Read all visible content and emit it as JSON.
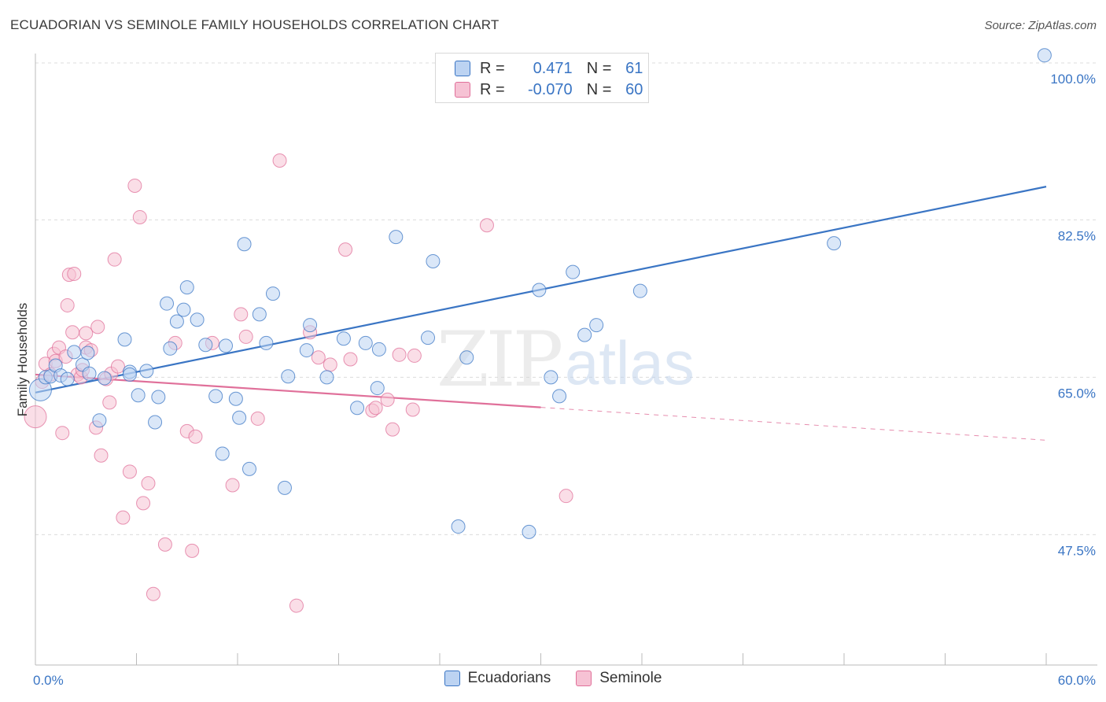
{
  "header": {
    "title": "ECUADORIAN VS SEMINOLE FAMILY HOUSEHOLDS CORRELATION CHART",
    "source": "Source: ZipAtlas.com"
  },
  "colors": {
    "blue": "#3a75c4",
    "blue_fill": "#bcd3f2",
    "pink": "#e0709a",
    "pink_fill": "#f6c2d4",
    "grid": "#dcdcdc",
    "axis": "#bbbbbb"
  },
  "legend": {
    "rows": [
      {
        "r_label": "R =",
        "r_value": "0.471",
        "n_label": "N =",
        "n_value": "61"
      },
      {
        "r_label": "R =",
        "r_value": "-0.070",
        "n_label": "N =",
        "n_value": "60"
      }
    ]
  },
  "chart_data": {
    "type": "scatter",
    "title": "ECUADORIAN VS SEMINOLE FAMILY HOUSEHOLDS CORRELATION CHART",
    "xlabel": "",
    "ylabel": "Family Households",
    "xlim": [
      0,
      60
    ],
    "ylim": [
      33,
      101
    ],
    "x_tick_labels": [
      "0.0%",
      "60.0%"
    ],
    "y_ticks": [
      47.5,
      65.0,
      82.5,
      100.0
    ],
    "y_tick_labels": [
      "47.5%",
      "65.0%",
      "82.5%",
      "100.0%"
    ],
    "grid": true,
    "watermark": {
      "zip": "ZIP",
      "atlas": "atlas"
    },
    "series": [
      {
        "name": "Ecuadorians",
        "r": 0.471,
        "n": 61,
        "trend": {
          "x": [
            0,
            60
          ],
          "y": [
            63.3,
            86.2
          ],
          "dashed_from": null
        },
        "points": [
          [
            0.3,
            63.6
          ],
          [
            0.6,
            65.0
          ],
          [
            0.9,
            65.1
          ],
          [
            1.2,
            66.3
          ],
          [
            1.5,
            65.2
          ],
          [
            1.9,
            64.8
          ],
          [
            2.3,
            67.8
          ],
          [
            2.8,
            66.4
          ],
          [
            3.2,
            65.4
          ],
          [
            3.8,
            60.2
          ],
          [
            4.1,
            64.9
          ],
          [
            5.6,
            65.6
          ],
          [
            5.3,
            69.2
          ],
          [
            5.6,
            65.3
          ],
          [
            6.1,
            63.0
          ],
          [
            6.6,
            65.7
          ],
          [
            7.1,
            60.0
          ],
          [
            7.3,
            62.8
          ],
          [
            7.8,
            73.2
          ],
          [
            8.0,
            68.2
          ],
          [
            8.4,
            71.2
          ],
          [
            8.8,
            72.5
          ],
          [
            9.0,
            75.0
          ],
          [
            9.6,
            71.4
          ],
          [
            10.1,
            68.6
          ],
          [
            10.7,
            62.9
          ],
          [
            11.1,
            56.5
          ],
          [
            11.3,
            68.5
          ],
          [
            11.9,
            62.6
          ],
          [
            12.1,
            60.5
          ],
          [
            12.4,
            79.8
          ],
          [
            12.7,
            54.8
          ],
          [
            13.3,
            72.0
          ],
          [
            13.7,
            68.8
          ],
          [
            14.1,
            74.3
          ],
          [
            14.8,
            52.7
          ],
          [
            15.0,
            65.1
          ],
          [
            16.1,
            68.0
          ],
          [
            16.3,
            70.8
          ],
          [
            17.3,
            65.0
          ],
          [
            18.3,
            69.3
          ],
          [
            19.1,
            61.6
          ],
          [
            19.6,
            68.8
          ],
          [
            20.3,
            63.8
          ],
          [
            20.4,
            68.1
          ],
          [
            21.4,
            80.6
          ],
          [
            23.3,
            69.4
          ],
          [
            23.6,
            77.9
          ],
          [
            25.1,
            48.4
          ],
          [
            25.6,
            67.2
          ],
          [
            29.3,
            47.8
          ],
          [
            29.9,
            74.7
          ],
          [
            30.6,
            65.0
          ],
          [
            31.1,
            62.9
          ],
          [
            31.9,
            76.7
          ],
          [
            32.6,
            69.7
          ],
          [
            33.3,
            70.8
          ],
          [
            35.9,
            74.6
          ],
          [
            47.4,
            79.9
          ],
          [
            59.9,
            100.8
          ],
          [
            3.1,
            67.7
          ]
        ]
      },
      {
        "name": "Seminole",
        "r": -0.07,
        "n": 60,
        "trend": {
          "x": [
            0,
            60
          ],
          "y": [
            65.3,
            58.0
          ],
          "dashed_from": 30.0
        },
        "points": [
          [
            0.0,
            60.6
          ],
          [
            0.4,
            64.5
          ],
          [
            0.6,
            66.5
          ],
          [
            0.9,
            65.3
          ],
          [
            1.1,
            67.6
          ],
          [
            1.2,
            66.8
          ],
          [
            1.4,
            68.3
          ],
          [
            1.6,
            58.8
          ],
          [
            1.8,
            67.3
          ],
          [
            1.9,
            73.0
          ],
          [
            2.0,
            76.4
          ],
          [
            2.2,
            70.0
          ],
          [
            2.3,
            76.5
          ],
          [
            2.5,
            65.3
          ],
          [
            2.7,
            65.0
          ],
          [
            2.8,
            65.8
          ],
          [
            3.0,
            68.3
          ],
          [
            3.0,
            69.9
          ],
          [
            3.3,
            68.0
          ],
          [
            3.6,
            59.4
          ],
          [
            3.7,
            70.6
          ],
          [
            3.9,
            56.3
          ],
          [
            4.2,
            64.8
          ],
          [
            4.4,
            62.2
          ],
          [
            4.5,
            65.4
          ],
          [
            4.7,
            78.1
          ],
          [
            4.9,
            66.2
          ],
          [
            5.2,
            49.4
          ],
          [
            5.6,
            54.5
          ],
          [
            5.9,
            86.3
          ],
          [
            6.2,
            82.8
          ],
          [
            6.4,
            51.0
          ],
          [
            6.7,
            53.2
          ],
          [
            7.0,
            40.9
          ],
          [
            7.7,
            46.4
          ],
          [
            8.3,
            68.8
          ],
          [
            9.0,
            59.0
          ],
          [
            9.3,
            45.7
          ],
          [
            9.5,
            58.4
          ],
          [
            10.5,
            68.8
          ],
          [
            11.7,
            53.0
          ],
          [
            12.2,
            72.0
          ],
          [
            12.5,
            69.5
          ],
          [
            13.2,
            60.4
          ],
          [
            14.5,
            89.1
          ],
          [
            15.5,
            39.6
          ],
          [
            16.3,
            70.0
          ],
          [
            16.8,
            67.2
          ],
          [
            17.5,
            66.4
          ],
          [
            18.4,
            79.2
          ],
          [
            18.7,
            67.0
          ],
          [
            20.0,
            61.3
          ],
          [
            20.2,
            61.6
          ],
          [
            20.9,
            62.5
          ],
          [
            21.2,
            59.2
          ],
          [
            21.6,
            67.5
          ],
          [
            22.4,
            61.4
          ],
          [
            22.5,
            67.4
          ],
          [
            26.8,
            81.9
          ],
          [
            31.5,
            51.8
          ]
        ]
      }
    ]
  }
}
